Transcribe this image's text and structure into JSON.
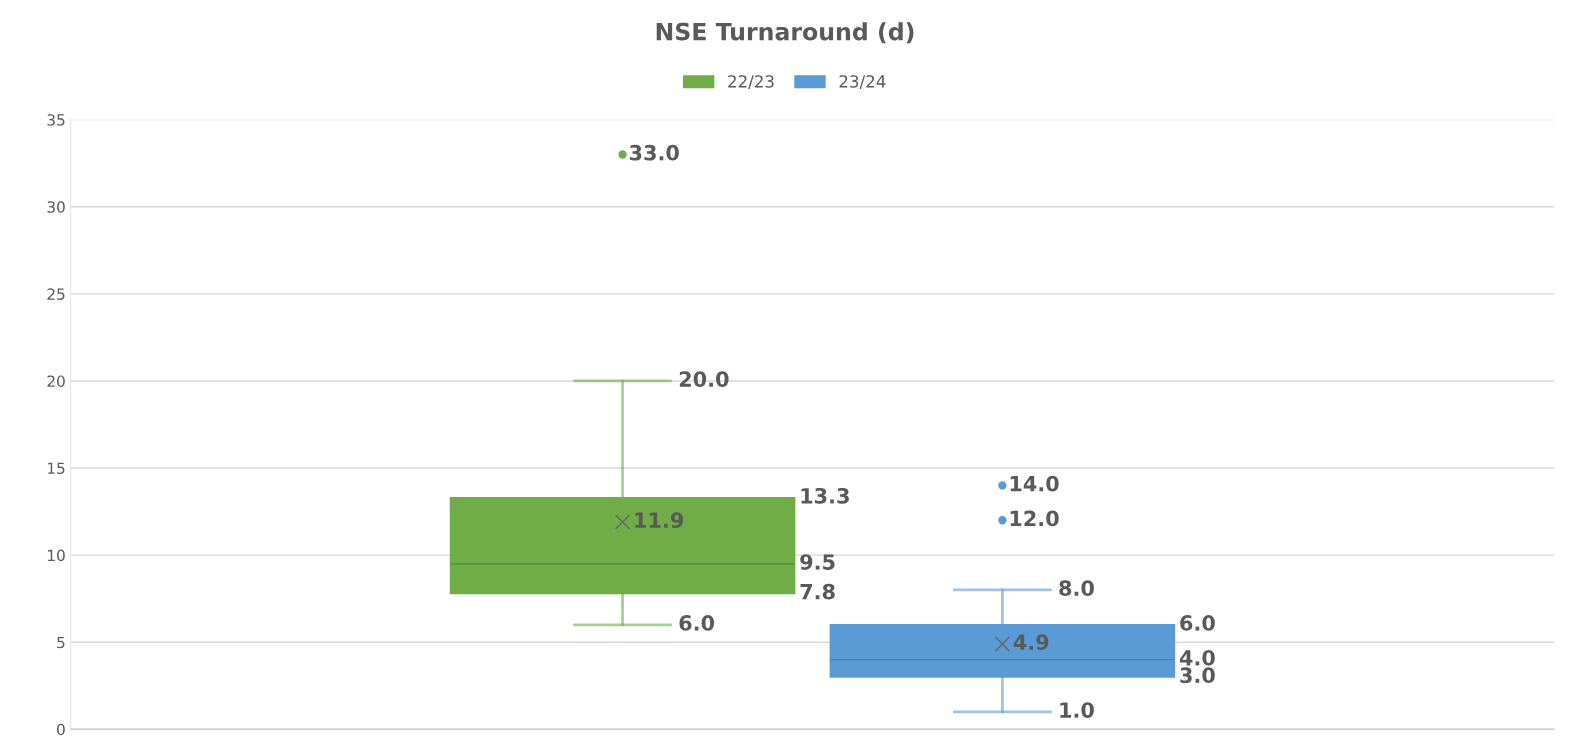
{
  "chart_data": {
    "type": "box",
    "title": "NSE Turnaround (d)",
    "categories": [
      null
    ],
    "series": [
      {
        "name": "22/23",
        "color": "#70ad47",
        "boxes": [
          {
            "low": 6.0,
            "q1": 7.8,
            "median": 9.5,
            "q3": 13.3,
            "high": 20.0,
            "mean": 11.9,
            "outliers": [
              33.0
            ]
          }
        ],
        "value_labels": [
          [
            "6.0",
            "7.8",
            "9.5",
            "13.3",
            "20.0",
            "11.9",
            "33.0"
          ]
        ]
      },
      {
        "name": "23/24",
        "color": "#5b9bd5",
        "boxes": [
          {
            "low": 1.0,
            "q1": 3.0,
            "median": 4.0,
            "q3": 6.0,
            "high": 8.0,
            "mean": 4.9,
            "outliers": [
              12.0,
              14.0
            ]
          }
        ],
        "value_labels": [
          [
            "1.0",
            "3.0",
            "4.0",
            "6.0",
            "8.0",
            "4.9",
            "12.0",
            "14.0"
          ]
        ]
      }
    ],
    "ylim": [
      0,
      35
    ],
    "yticks": [
      0,
      5,
      10,
      15,
      20,
      25,
      30,
      35
    ],
    "grid": "y",
    "legend": "top"
  }
}
